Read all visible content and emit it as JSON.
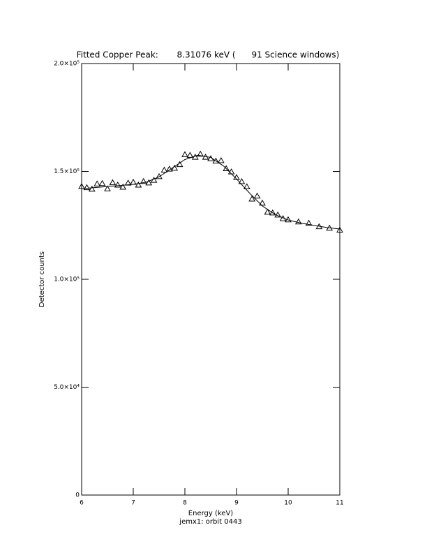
{
  "chart_data": {
    "type": "scatter",
    "title": "Fitted Copper Peak:       8.31076 keV (      91 Science windows)",
    "x_label": "Energy (keV)",
    "subtitle": "jemx1: orbit 0443",
    "y_label": "Detector counts",
    "xlim": [
      6,
      11
    ],
    "xticks": [
      6,
      7,
      8,
      9,
      10,
      11
    ],
    "ylim": [
      0,
      200000
    ],
    "yticks": [
      0,
      {
        "value": 50000,
        "label": "5.0×10⁴"
      },
      {
        "value": 100000,
        "label": "1.0×10⁵"
      },
      {
        "value": 150000,
        "label": "1.5×10⁵"
      },
      {
        "value": 200000,
        "label": "2.0×10⁵"
      }
    ],
    "series": [
      {
        "marker": "triangle",
        "color": "#000000",
        "x": [
          6.0,
          6.1,
          6.2,
          6.3,
          6.4,
          6.5,
          6.6,
          6.7,
          6.8,
          6.9,
          7.0,
          7.1,
          7.2,
          7.3,
          7.4,
          7.5,
          7.6,
          7.7,
          7.8,
          7.9,
          8.0,
          8.1,
          8.2,
          8.3,
          8.4,
          8.5,
          8.6,
          8.7,
          8.8,
          8.9,
          9.0,
          9.1,
          9.2,
          9.3,
          9.4,
          9.5,
          9.6,
          9.7,
          9.8,
          9.9,
          10.0,
          10.2,
          10.4,
          10.6,
          10.8,
          11.0
        ],
        "values": [
          143000,
          142500,
          141800,
          144200,
          144400,
          141900,
          144800,
          143700,
          142700,
          144600,
          145000,
          143700,
          145400,
          144700,
          145900,
          147600,
          150600,
          151100,
          151500,
          153200,
          157800,
          157500,
          156600,
          158000,
          156600,
          155900,
          154800,
          155000,
          151300,
          149800,
          147200,
          145300,
          142900,
          137200,
          138600,
          135300,
          131100,
          130800,
          129800,
          128100,
          127600,
          126600,
          126000,
          124400,
          123700,
          122800
        ]
      },
      {
        "marker": "line",
        "color": "#000000",
        "x": [
          6.0,
          6.25,
          6.5,
          6.75,
          7.0,
          7.25,
          7.5,
          7.75,
          8.0,
          8.25,
          8.5,
          8.75,
          9.0,
          9.25,
          9.5,
          9.75,
          10.0,
          10.25,
          10.5,
          10.75,
          11.0
        ],
        "values": [
          142000,
          142500,
          143000,
          143500,
          144000,
          145000,
          147500,
          151500,
          155500,
          157500,
          156500,
          152500,
          146500,
          140000,
          134000,
          130000,
          127500,
          126000,
          125000,
          124000,
          123300
        ]
      }
    ]
  }
}
